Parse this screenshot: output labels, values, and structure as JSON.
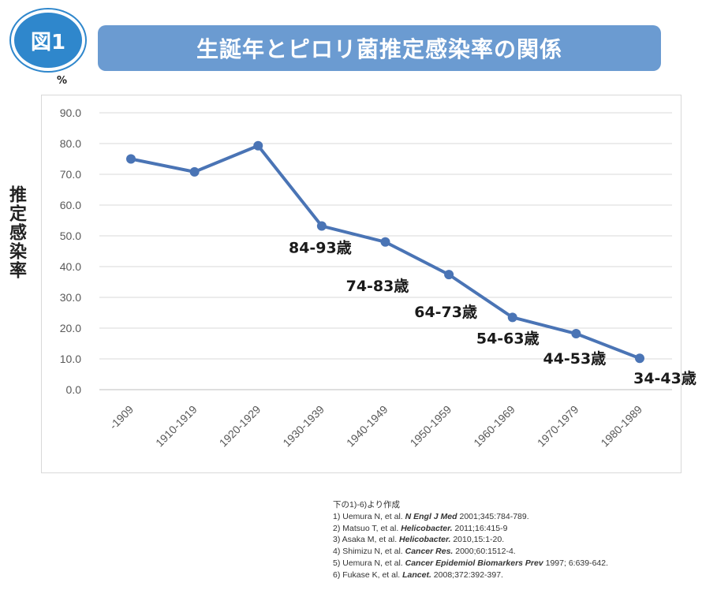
{
  "badge": "図1",
  "title": "生誕年とピロリ菌推定感染率の関係",
  "unit": "%",
  "ylabel": "推定感染率",
  "chart_data": {
    "type": "line",
    "categories": [
      "-1909",
      "1910-1919",
      "1920-1929",
      "1930-1939",
      "1940-1949",
      "1950-1959",
      "1960-1969",
      "1970-1979",
      "1980-1989"
    ],
    "series": [
      {
        "values": [
          75.0,
          70.8,
          79.3,
          53.2,
          48.0,
          37.4,
          23.5,
          18.2,
          10.2
        ]
      }
    ],
    "ylim": [
      0,
      90
    ],
    "yticks": [
      "0.0",
      "10.0",
      "20.0",
      "30.0",
      "40.0",
      "50.0",
      "60.0",
      "70.0",
      "80.0",
      "90.0"
    ],
    "annotations": [
      "",
      "",
      "",
      "84-93歳",
      "74-83歳",
      "64-73歳",
      "54-63歳",
      "44-53歳",
      "34-43歳"
    ],
    "grid": true,
    "color": "#4a74b5"
  },
  "references": {
    "header": "下の1)-6)より作成",
    "items": [
      {
        "pre": "1) Uemura N, et al. ",
        "journal": "N Engl J Med",
        "post": " 2001;345:784-789."
      },
      {
        "pre": "2) Matsuo T, et al. ",
        "journal": "Helicobacter.",
        "post": " 2011;16:415-9"
      },
      {
        "pre": "3) Asaka M, et al. ",
        "journal": "Helicobacter.",
        "post": " 2010,15:1-20."
      },
      {
        "pre": "4) Shimizu N, et al. ",
        "journal": "Cancer Res.",
        "post": " 2000;60:1512-4."
      },
      {
        "pre": "5) Uemura N, et al. ",
        "journal": "Cancer Epidemiol Biomarkers Prev",
        "post": " 1997; 6:639-642."
      },
      {
        "pre": "6) Fukase K, et al. ",
        "journal": "Lancet.",
        "post": " 2008;372:392-397."
      }
    ]
  }
}
